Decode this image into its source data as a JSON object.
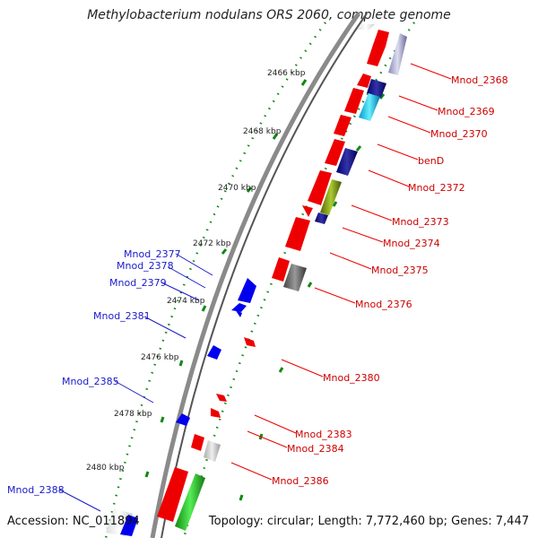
{
  "title": "Methylobacterium nodulans ORS 2060, complete genome",
  "accession": "Accession: NC_011894",
  "topology": "Topology: circular; Length: 7,772,460 bp; Genes: 7,447",
  "colors": {
    "forward": "#ee0000",
    "reverse": "#0000ee",
    "label_forward": "#cc0000",
    "label_reverse": "#1a1acc",
    "tick": "#118811",
    "backbone": "#777777"
  },
  "kbp_ticks": [
    "2466 kbp",
    "2468 kbp",
    "2470 kbp",
    "2472 kbp",
    "2474 kbp",
    "2476 kbp",
    "2478 kbp",
    "2480 kbp"
  ],
  "forward_labels": [
    "Mnod_2368",
    "Mnod_2369",
    "Mnod_2370",
    "benD",
    "Mnod_2372",
    "Mnod_2373",
    "Mnod_2374",
    "Mnod_2375",
    "Mnod_2376",
    "Mnod_2380",
    "Mnod_2383",
    "Mnod_2384",
    "Mnod_2386"
  ],
  "reverse_labels": [
    "Mnod_2377",
    "Mnod_2378",
    "Mnod_2379",
    "Mnod_2381",
    "Mnod_2385",
    "Mnod_2388"
  ]
}
